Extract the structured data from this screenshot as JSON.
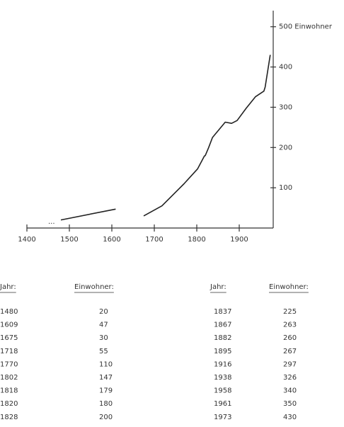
{
  "chart_data": {
    "type": "line",
    "x": [
      1480,
      1609,
      null,
      1675,
      1718,
      1770,
      1802,
      1818,
      1820,
      1828,
      1837,
      1867,
      1882,
      1895,
      1916,
      1938,
      1958,
      1961,
      1973
    ],
    "values": [
      20,
      47,
      null,
      30,
      55,
      110,
      147,
      179,
      180,
      200,
      225,
      263,
      260,
      267,
      297,
      326,
      340,
      350,
      430
    ],
    "color": "#222222",
    "xlim": [
      1400,
      1980
    ],
    "xticks": [
      1400,
      1500,
      1600,
      1700,
      1800,
      1900
    ],
    "ylim": [
      0,
      540
    ],
    "yticks": [
      100,
      200,
      300,
      400,
      {
        "value": 500,
        "label": "500 Einwohner"
      }
    ],
    "annotation": "...",
    "grid": false
  },
  "table": {
    "header": [
      "Jahr:",
      "Einwohner:",
      "Jahr:",
      "Einwohner:"
    ],
    "rows": [
      [
        1480,
        20,
        1837,
        225
      ],
      [
        1609,
        47,
        1867,
        263
      ],
      [
        1675,
        30,
        1882,
        260
      ],
      [
        1718,
        55,
        1895,
        267
      ],
      [
        1770,
        110,
        1916,
        297
      ],
      [
        1802,
        147,
        1938,
        326
      ],
      [
        1818,
        179,
        1958,
        340
      ],
      [
        1820,
        180,
        1961,
        350
      ],
      [
        1828,
        200,
        1973,
        430
      ]
    ]
  }
}
